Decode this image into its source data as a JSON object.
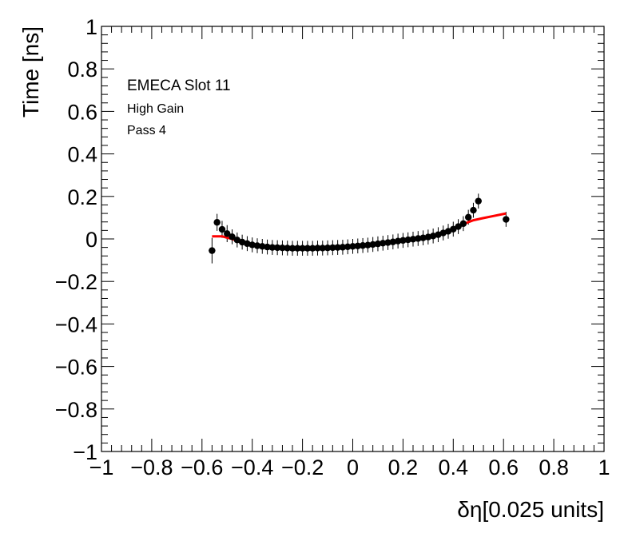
{
  "chart_data": {
    "type": "scatter",
    "annotations": [
      "EMECA Slot 11",
      "High Gain",
      "Pass 4"
    ],
    "xlabel": "δη[0.025 units]",
    "ylabel": "Time [ns]",
    "xlim": [
      -1,
      1
    ],
    "ylim": [
      -1,
      1
    ],
    "x_ticks": [
      "−1",
      "−0.8",
      "−0.6",
      "−0.4",
      "−0.2",
      "0",
      "0.2",
      "0.4",
      "0.6",
      "0.8",
      "1"
    ],
    "y_ticks": [
      "−1",
      "−0.8",
      "−0.6",
      "−0.4",
      "−0.2",
      "0",
      "0.2",
      "0.4",
      "0.6",
      "0.8",
      "1"
    ],
    "grid": false,
    "series": [
      {
        "kind": "points_with_errors",
        "color": "#000000",
        "points": [
          {
            "x": -0.56,
            "y": -0.055,
            "err": 0.06
          },
          {
            "x": -0.54,
            "y": 0.078,
            "err": 0.04
          },
          {
            "x": -0.52,
            "y": 0.045,
            "err": 0.04
          },
          {
            "x": -0.5,
            "y": 0.025,
            "err": 0.04
          },
          {
            "x": -0.48,
            "y": 0.01,
            "err": 0.035
          },
          {
            "x": -0.46,
            "y": -0.005,
            "err": 0.035
          },
          {
            "x": -0.44,
            "y": -0.015,
            "err": 0.035
          },
          {
            "x": -0.42,
            "y": -0.022,
            "err": 0.035
          },
          {
            "x": -0.4,
            "y": -0.028,
            "err": 0.035
          },
          {
            "x": -0.38,
            "y": -0.032,
            "err": 0.035
          },
          {
            "x": -0.36,
            "y": -0.035,
            "err": 0.035
          },
          {
            "x": -0.34,
            "y": -0.038,
            "err": 0.035
          },
          {
            "x": -0.32,
            "y": -0.04,
            "err": 0.035
          },
          {
            "x": -0.3,
            "y": -0.041,
            "err": 0.035
          },
          {
            "x": -0.28,
            "y": -0.042,
            "err": 0.035
          },
          {
            "x": -0.26,
            "y": -0.043,
            "err": 0.035
          },
          {
            "x": -0.24,
            "y": -0.044,
            "err": 0.035
          },
          {
            "x": -0.22,
            "y": -0.044,
            "err": 0.035
          },
          {
            "x": -0.2,
            "y": -0.044,
            "err": 0.035
          },
          {
            "x": -0.18,
            "y": -0.044,
            "err": 0.035
          },
          {
            "x": -0.16,
            "y": -0.044,
            "err": 0.035
          },
          {
            "x": -0.14,
            "y": -0.043,
            "err": 0.035
          },
          {
            "x": -0.12,
            "y": -0.043,
            "err": 0.035
          },
          {
            "x": -0.1,
            "y": -0.042,
            "err": 0.035
          },
          {
            "x": -0.08,
            "y": -0.041,
            "err": 0.035
          },
          {
            "x": -0.06,
            "y": -0.04,
            "err": 0.035
          },
          {
            "x": -0.04,
            "y": -0.039,
            "err": 0.035
          },
          {
            "x": -0.02,
            "y": -0.037,
            "err": 0.035
          },
          {
            "x": 0.0,
            "y": -0.035,
            "err": 0.035
          },
          {
            "x": 0.02,
            "y": -0.033,
            "err": 0.035
          },
          {
            "x": 0.04,
            "y": -0.031,
            "err": 0.035
          },
          {
            "x": 0.06,
            "y": -0.029,
            "err": 0.035
          },
          {
            "x": 0.08,
            "y": -0.026,
            "err": 0.035
          },
          {
            "x": 0.1,
            "y": -0.023,
            "err": 0.035
          },
          {
            "x": 0.12,
            "y": -0.02,
            "err": 0.035
          },
          {
            "x": 0.14,
            "y": -0.017,
            "err": 0.035
          },
          {
            "x": 0.16,
            "y": -0.014,
            "err": 0.035
          },
          {
            "x": 0.18,
            "y": -0.01,
            "err": 0.035
          },
          {
            "x": 0.2,
            "y": -0.007,
            "err": 0.035
          },
          {
            "x": 0.22,
            "y": -0.004,
            "err": 0.035
          },
          {
            "x": 0.24,
            "y": -0.001,
            "err": 0.035
          },
          {
            "x": 0.26,
            "y": 0.002,
            "err": 0.035
          },
          {
            "x": 0.28,
            "y": 0.005,
            "err": 0.035
          },
          {
            "x": 0.3,
            "y": 0.009,
            "err": 0.035
          },
          {
            "x": 0.32,
            "y": 0.014,
            "err": 0.035
          },
          {
            "x": 0.34,
            "y": 0.02,
            "err": 0.035
          },
          {
            "x": 0.36,
            "y": 0.028,
            "err": 0.035
          },
          {
            "x": 0.38,
            "y": 0.036,
            "err": 0.035
          },
          {
            "x": 0.4,
            "y": 0.046,
            "err": 0.035
          },
          {
            "x": 0.42,
            "y": 0.058,
            "err": 0.035
          },
          {
            "x": 0.44,
            "y": 0.072,
            "err": 0.035
          },
          {
            "x": 0.46,
            "y": 0.102,
            "err": 0.035
          },
          {
            "x": 0.48,
            "y": 0.135,
            "err": 0.035
          },
          {
            "x": 0.5,
            "y": 0.178,
            "err": 0.035
          },
          {
            "x": 0.61,
            "y": 0.092,
            "err": 0.035
          }
        ]
      },
      {
        "kind": "fit_line",
        "color": "#ff0000",
        "points": [
          {
            "x": -0.56,
            "y": 0.012
          },
          {
            "x": -0.52,
            "y": 0.012
          },
          {
            "x": -0.48,
            "y": 0.0
          },
          {
            "x": -0.44,
            "y": -0.018
          },
          {
            "x": -0.4,
            "y": -0.03
          },
          {
            "x": -0.36,
            "y": -0.037
          },
          {
            "x": -0.32,
            "y": -0.041
          },
          {
            "x": -0.28,
            "y": -0.043
          },
          {
            "x": -0.24,
            "y": -0.044
          },
          {
            "x": -0.2,
            "y": -0.045
          },
          {
            "x": -0.16,
            "y": -0.045
          },
          {
            "x": -0.12,
            "y": -0.044
          },
          {
            "x": -0.08,
            "y": -0.042
          },
          {
            "x": -0.04,
            "y": -0.04
          },
          {
            "x": 0.0,
            "y": -0.036
          },
          {
            "x": 0.04,
            "y": -0.032
          },
          {
            "x": 0.08,
            "y": -0.027
          },
          {
            "x": 0.12,
            "y": -0.021
          },
          {
            "x": 0.16,
            "y": -0.015
          },
          {
            "x": 0.2,
            "y": -0.008
          },
          {
            "x": 0.24,
            "y": -0.002
          },
          {
            "x": 0.28,
            "y": 0.005
          },
          {
            "x": 0.32,
            "y": 0.013
          },
          {
            "x": 0.36,
            "y": 0.025
          },
          {
            "x": 0.4,
            "y": 0.043
          },
          {
            "x": 0.44,
            "y": 0.07
          },
          {
            "x": 0.48,
            "y": 0.088
          },
          {
            "x": 0.52,
            "y": 0.098
          },
          {
            "x": 0.56,
            "y": 0.108
          },
          {
            "x": 0.61,
            "y": 0.12
          }
        ]
      }
    ]
  }
}
